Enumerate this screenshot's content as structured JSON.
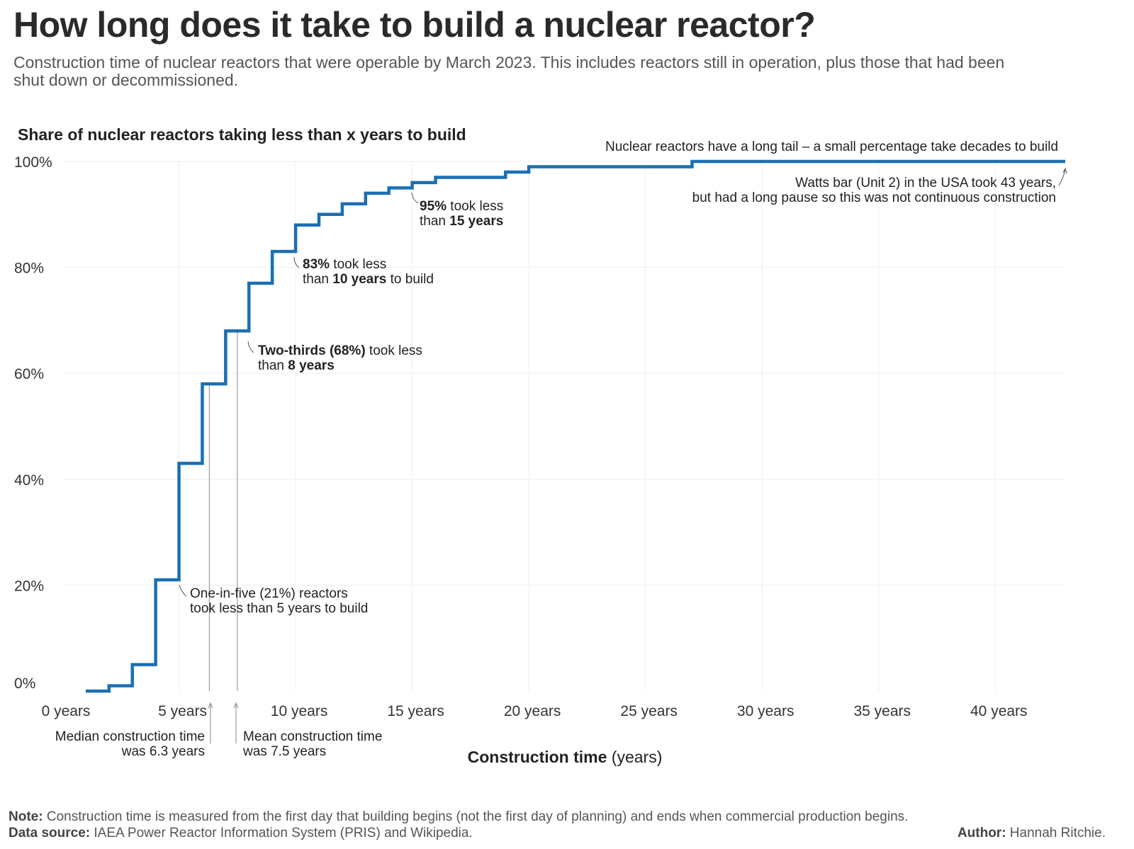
{
  "title": "How long does it take to build a nuclear reactor?",
  "subtitle": "Construction time of nuclear reactors that were operable by March 2023. This includes reactors still in operation, plus those that had been shut down or decommissioned.",
  "chart_data": {
    "type": "line",
    "title": "Share of nuclear reactors taking less than x years to build",
    "xlabel_bold": "Construction time",
    "xlabel_rest": "(years)",
    "xlim": [
      0,
      43
    ],
    "ylim": [
      0,
      100
    ],
    "x_ticks": [
      0,
      5,
      10,
      15,
      20,
      25,
      30,
      35,
      40
    ],
    "x_tick_labels": [
      "0 years",
      "5 years",
      "10 years",
      "15 years",
      "20 years",
      "25 years",
      "30 years",
      "35 years",
      "40 years"
    ],
    "y_ticks": [
      0,
      20,
      40,
      60,
      80,
      100
    ],
    "y_tick_labels": [
      "0%",
      "20%",
      "40%",
      "60%",
      "80%",
      "100%"
    ],
    "grid": true,
    "line_color": "#1a6fb3",
    "series": [
      {
        "x": [
          1.0,
          2,
          3,
          4,
          5,
          6,
          7,
          8,
          9,
          10,
          11,
          12,
          13,
          14,
          15,
          16,
          19,
          20,
          27,
          43
        ],
        "y": [
          0,
          1,
          5,
          21,
          43,
          58,
          68,
          77,
          83,
          88,
          90,
          92,
          94,
          95,
          96,
          97,
          98,
          99,
          100,
          100
        ]
      }
    ],
    "annotations": {
      "top_note": "Nuclear reactors have a long tail – a small percentage take decades to build",
      "watts_line1": "Watts bar (Unit 2) in the USA took 43 years,",
      "watts_line2": "but had a long pause so this was not continuous construction",
      "p95_bold": "95%",
      "p95_rest": " took less",
      "p95_line2_a": "than ",
      "p95_line2_b": "15 years",
      "p83_bold": "83%",
      "p83_rest": " took less",
      "p83_line2_a": "than ",
      "p83_line2_b": "10 years",
      "p83_line2_c": " to build",
      "p68_bold": "Two-thirds (68%)",
      "p68_rest": " took less",
      "p68_line2_a": "than ",
      "p68_line2_b": "8 years",
      "p21_line1": "One-in-five (21%) reactors",
      "p21_line2": "took less than 5 years to build",
      "median_line1": "Median construction time",
      "median_line2": "was 6.3 years",
      "median_x": 6.3,
      "mean_line1": "Mean construction time",
      "mean_line2": "was 7.5 years",
      "mean_x": 7.5
    }
  },
  "footer": {
    "note_label": "Note:",
    "note_text": " Construction time is measured from the first day that building begins (not the first day of planning) and ends when commercial production begins.",
    "source_label": "Data source:",
    "source_text": " IAEA Power Reactor Information System (PRIS) and Wikipedia.",
    "author_label": "Author:",
    "author_text": " Hannah Ritchie."
  }
}
